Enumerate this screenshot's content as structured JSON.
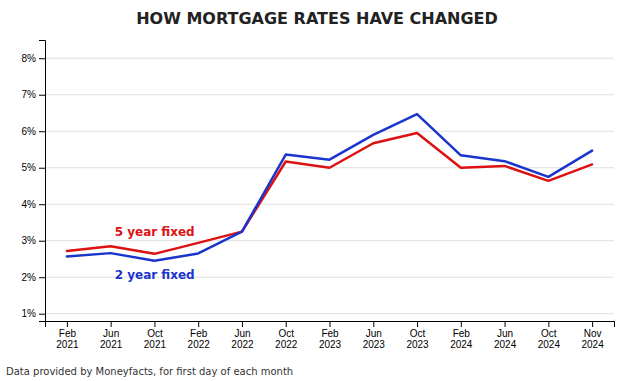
{
  "chart_data": {
    "type": "line",
    "title": "HOW MORTGAGE RATES HAVE CHANGED",
    "footnote": "Data provided by Moneyfacts, for first day of each month",
    "categories": [
      "Feb\n2021",
      "Jun\n2021",
      "Oct\n2021",
      "Feb\n2022",
      "Jun\n2022",
      "Oct\n2022",
      "Feb\n2023",
      "Jun\n2023",
      "Oct\n2023",
      "Feb\n2024",
      "Jun\n2024",
      "Oct\n2024",
      "Nov\n2024"
    ],
    "series": [
      {
        "name": "5 year fixed",
        "color": "#dd1111",
        "values": [
          2.72,
          2.85,
          2.64,
          2.94,
          3.25,
          5.17,
          5.0,
          5.67,
          5.95,
          5.0,
          5.05,
          4.64,
          5.09
        ]
      },
      {
        "name": "2 year fixed",
        "color": "#1a35cc",
        "values": [
          2.57,
          2.66,
          2.45,
          2.65,
          3.25,
          5.36,
          5.22,
          5.9,
          6.47,
          5.34,
          5.18,
          4.75,
          5.47
        ]
      }
    ],
    "ylim": [
      0.8,
      8.5
    ],
    "yticks": [
      {
        "value": 1,
        "label": "1%"
      },
      {
        "value": 2,
        "label": "2%"
      },
      {
        "value": 3,
        "label": "3%"
      },
      {
        "value": 4,
        "label": "4%"
      },
      {
        "value": 5,
        "label": "5%"
      },
      {
        "value": 6,
        "label": "6%"
      },
      {
        "value": 7,
        "label": "7%"
      },
      {
        "value": 8,
        "label": "8%"
      }
    ],
    "grid": true
  }
}
